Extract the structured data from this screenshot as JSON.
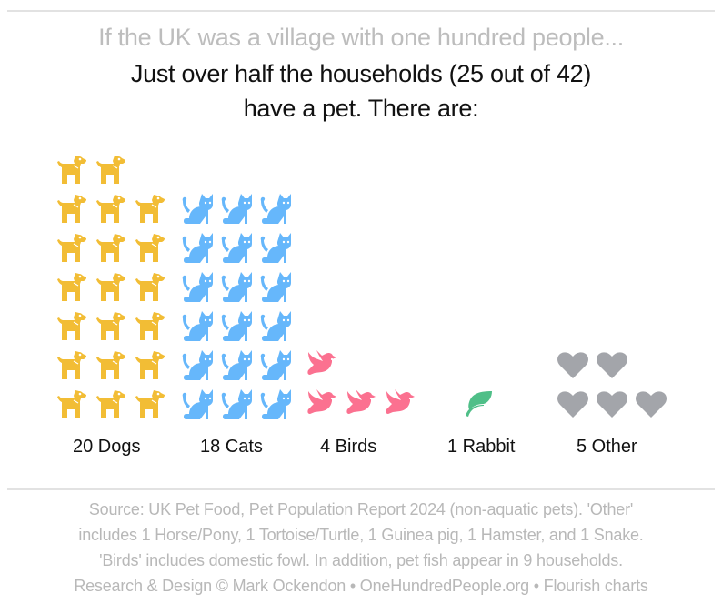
{
  "header": {
    "title": "If the UK was a village with one hundred people...",
    "subtitle_lines": [
      "Just over half the households (25 out of 42)",
      "have a pet. There are:"
    ]
  },
  "colors": {
    "dogs": "#f2bd35",
    "cats": "#66b7fb",
    "birds": "#fb7190",
    "rabbit": "#4fbf88",
    "other": "#a3a5aa",
    "title": "#bdbdbd",
    "text": "#111111",
    "footer": "#b8b8b8"
  },
  "groups": [
    {
      "key": "dogs",
      "label": "20 Dogs",
      "count": 20,
      "icon": "dog-icon",
      "color": "#f2bd35"
    },
    {
      "key": "cats",
      "label": "18 Cats",
      "count": 18,
      "icon": "cat-icon",
      "color": "#66b7fb"
    },
    {
      "key": "birds",
      "label": "4 Birds",
      "count": 4,
      "icon": "dove-icon",
      "color": "#fb7190"
    },
    {
      "key": "rabbit",
      "label": "1 Rabbit",
      "count": 1,
      "icon": "leaf-icon",
      "color": "#4fbf88"
    },
    {
      "key": "other",
      "label": "5 Other",
      "count": 5,
      "icon": "heart-icon",
      "color": "#a3a5aa"
    }
  ],
  "chart_data": {
    "type": "pictogram",
    "title": "If the UK was a village with one hundred people...",
    "subtitle": "Just over half the households (25 out of 42) have a pet. There are:",
    "categories": [
      "Dogs",
      "Cats",
      "Birds",
      "Rabbit",
      "Other"
    ],
    "values": [
      20,
      18,
      4,
      1,
      5
    ],
    "labels": [
      "20 Dogs",
      "18 Cats",
      "4 Birds",
      "1 Rabbit",
      "5 Other"
    ],
    "icons_per_row": 3,
    "unit": "pets (1 icon = 1 pet)",
    "households_with_pet": 25,
    "total_households": 42
  },
  "footer": {
    "lines": [
      "Source: UK Pet Food, Pet Population Report 2024 (non-aquatic pets). 'Other'",
      "includes 1 Horse/Pony, 1 Tortoise/Turtle, 1 Guinea pig, 1 Hamster, and 1 Snake.",
      "'Birds' includes domestic fowl. In addition, pet fish appear in 9 households.",
      "Research & Design © Mark Ockendon • OneHundredPeople.org • Flourish charts"
    ]
  }
}
